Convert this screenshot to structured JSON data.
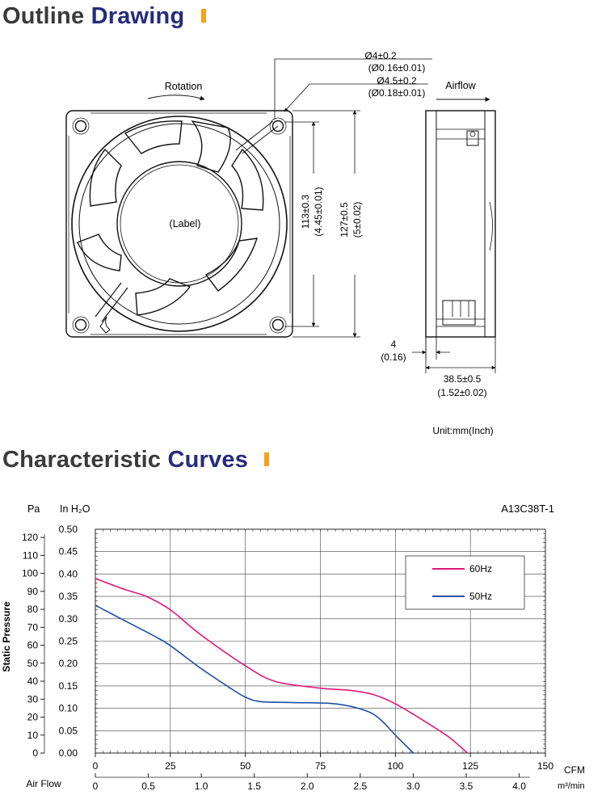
{
  "outline": {
    "title_word1": "Outline",
    "title_word2": "Drawing",
    "rotation_label": "Rotation",
    "airflow_label": "Airflow",
    "label_text": "(Label)",
    "hole_dim_1_mm": "Ø4±0.2",
    "hole_dim_1_in": "(Ø0.16±0.01)",
    "hole_dim_2_mm": "Ø4.5±0.2",
    "hole_dim_2_in": "(Ø0.18±0.01)",
    "hole_spacing_mm": "113±0.3",
    "hole_spacing_in": "(4.45±0.01)",
    "frame_size_mm": "127±0.5",
    "frame_size_in": "(5±0.02)",
    "flange_mm": "4",
    "flange_in": "(0.16)",
    "depth_mm": "38.5±0.5",
    "depth_in": "(1.52±0.02)",
    "unit_note": "Unit:mm(Inch)"
  },
  "curves": {
    "title_word1": "Characteristic",
    "title_word2": "Curves"
  },
  "chart_data": {
    "type": "line",
    "model": "A13C38T-1",
    "ylabel": "Static Pressure",
    "y_unit_left": "Pa",
    "y_unit_right": "In H₂O",
    "x_axis_title": "Air Flow",
    "x_unit_top": "CFM",
    "x_unit_bottom": "m³/min",
    "xlim_cfm": [
      0,
      150
    ],
    "ylim_inh2o": [
      0,
      0.5
    ],
    "x_ticks_cfm": [
      "0",
      "25",
      "50",
      "75",
      "100",
      "125",
      "150"
    ],
    "x_ticks_m3min": [
      "0",
      "0.5",
      "1.0",
      "1.5",
      "2.0",
      "2.5",
      "3.0",
      "3.5",
      "4.0"
    ],
    "y_ticks_pa": [
      "0",
      "10",
      "20",
      "30",
      "40",
      "50",
      "60",
      "70",
      "80",
      "90",
      "100",
      "110",
      "120"
    ],
    "y_ticks_inh2o": [
      "0.00",
      "0.05",
      "0.10",
      "0.15",
      "0.20",
      "0.25",
      "0.30",
      "0.35",
      "0.40",
      "0.45",
      "0.50"
    ],
    "grid": true,
    "legend_position": "top-right",
    "series": [
      {
        "name": "60Hz",
        "color": "#e0177c",
        "x": [
          0,
          10,
          17,
          25,
          35,
          50,
          60,
          75,
          85,
          93,
          100,
          110,
          118,
          124
        ],
        "y": [
          0.39,
          0.365,
          0.35,
          0.32,
          0.265,
          0.195,
          0.16,
          0.145,
          0.14,
          0.13,
          0.11,
          0.07,
          0.035,
          0.0
        ]
      },
      {
        "name": "50Hz",
        "color": "#1f4ea3",
        "x": [
          0,
          10,
          20,
          25,
          35,
          45,
          50,
          55,
          65,
          80,
          90,
          95,
          100,
          106
        ],
        "y": [
          0.33,
          0.295,
          0.26,
          0.24,
          0.19,
          0.145,
          0.125,
          0.115,
          0.113,
          0.11,
          0.095,
          0.075,
          0.04,
          0.0
        ]
      }
    ]
  }
}
